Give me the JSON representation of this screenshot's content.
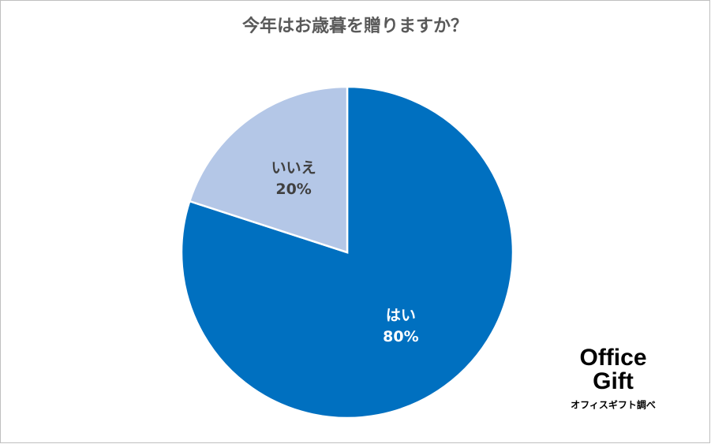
{
  "chart_data": {
    "type": "pie",
    "title": "今年はお歳暮を贈りますか？",
    "categories": [
      "はい",
      "いいえ"
    ],
    "values": [
      80,
      20
    ],
    "value_labels": [
      "80%",
      "20%"
    ],
    "colors": [
      "#0070c0",
      "#b4c7e7"
    ],
    "logo": [
      "Office",
      "Gift"
    ],
    "source": "オフィスギフト調べ"
  }
}
